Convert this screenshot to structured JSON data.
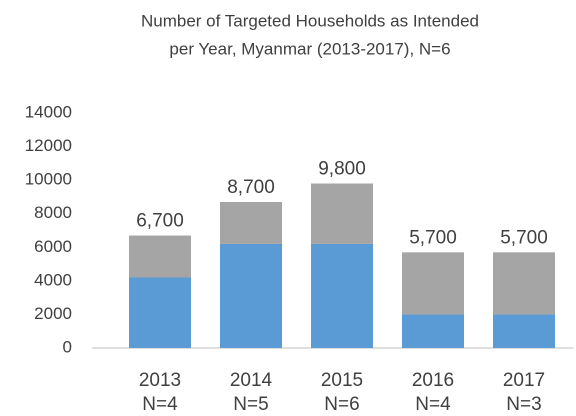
{
  "chart_data": {
    "type": "stacked_bar",
    "title": [
      "Number of Targeted Households as Intended",
      "per Year, Myanmar (2013-2017), N=6"
    ],
    "categories": [
      "2013",
      "2014",
      "2015",
      "2016",
      "2017"
    ],
    "category_notes": [
      "N=4",
      "N=5",
      "N=6",
      "N=4",
      "N=3"
    ],
    "series": [
      {
        "color": "#5b9bd5",
        "values": [
          4200,
          6200,
          6200,
          2000,
          2000
        ]
      },
      {
        "color": "#a5a5a5",
        "values": [
          2500,
          2500,
          3600,
          3700,
          3700
        ]
      }
    ],
    "totals": [
      6700,
      8700,
      9800,
      5700,
      5700
    ],
    "total_labels": [
      "6,700",
      "8,700",
      "9,800",
      "5,700",
      "5,700"
    ],
    "ylim": [
      0,
      14000
    ],
    "yticks": [
      0,
      2000,
      4000,
      6000,
      8000,
      10000,
      12000,
      14000
    ],
    "grid": false
  }
}
